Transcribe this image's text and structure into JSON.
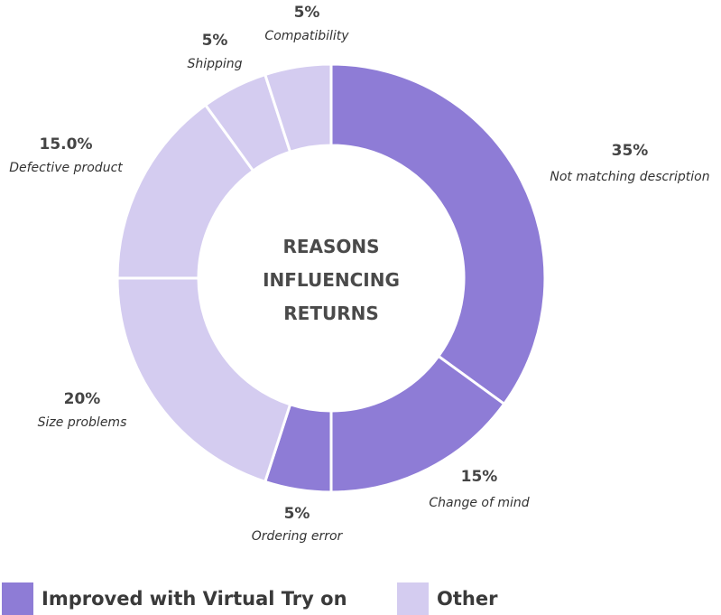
{
  "chart_data": {
    "type": "donut",
    "title": "REASONS INFLUENCING RETURNS",
    "categories": [
      "Not matching description",
      "Change of mind",
      "Ordering error",
      "Size problems",
      "Defective product",
      "Shipping",
      "Compatibility"
    ],
    "values": [
      35,
      15,
      5,
      20,
      15,
      5,
      5
    ],
    "value_labels": [
      "35%",
      "15%",
      "5%",
      "20%",
      "15.0%",
      "5%",
      "5%"
    ],
    "colors": [
      "#8e7cd6",
      "#8e7cd6",
      "#8e7cd6",
      "#d4ccf0",
      "#d4ccf0",
      "#d4ccf0",
      "#d4ccf0"
    ],
    "legend": [
      {
        "name": "Improved with Virtual Try on",
        "color": "#8e7cd6"
      },
      {
        "name": "Other",
        "color": "#d4ccf0"
      }
    ]
  }
}
